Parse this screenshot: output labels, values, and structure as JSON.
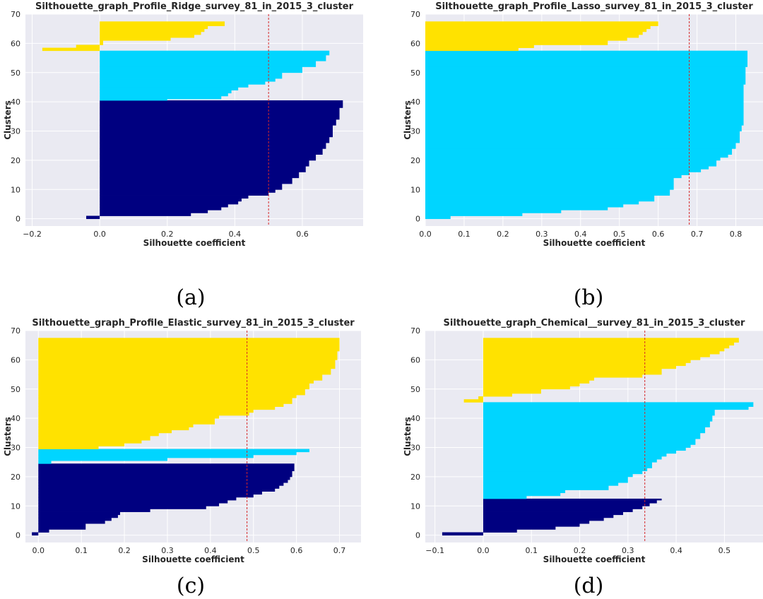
{
  "figure": {
    "captions": [
      "(a)",
      "(b)",
      "(c)",
      "(d)"
    ]
  },
  "colors": {
    "background": "#eaeaf2",
    "grid": "#ffffff",
    "cluster_0": "#000080",
    "cluster_1": "#00d5ff",
    "cluster_2": "#ffe200",
    "mean_line": "#d62728",
    "text": "#262626"
  },
  "chart_data": [
    {
      "type": "bar",
      "orientation": "horizontal",
      "title": "Silthouette_graph_Profile_Ridge_survey_81_in_2015_3_cluster",
      "xlabel": "Silhouette coefficient",
      "ylabel": "Clusters",
      "xlim": [
        -0.22,
        0.78
      ],
      "ylim": [
        -2.5,
        70
      ],
      "xticks": [
        -0.2,
        0.0,
        0.2,
        0.4,
        0.6
      ],
      "xtick_labels": [
        "−0.2",
        "0.0",
        "0.2",
        "0.4",
        "0.6"
      ],
      "yticks": [
        0,
        10,
        20,
        30,
        40,
        50,
        60,
        70
      ],
      "grid": true,
      "mean_silhouette": 0.5,
      "series": [
        {
          "cluster": 0,
          "y_start": 0,
          "y_end": 40.5,
          "profile": [
            [
              0,
              -0.04
            ],
            [
              1,
              0.27
            ],
            [
              2,
              0.32
            ],
            [
              3,
              0.36
            ],
            [
              4,
              0.38
            ],
            [
              5,
              0.41
            ],
            [
              6,
              0.42
            ],
            [
              7,
              0.44
            ],
            [
              8,
              0.5
            ],
            [
              9,
              0.52
            ],
            [
              10,
              0.54
            ],
            [
              12,
              0.57
            ],
            [
              14,
              0.59
            ],
            [
              16,
              0.61
            ],
            [
              18,
              0.62
            ],
            [
              20,
              0.64
            ],
            [
              22,
              0.66
            ],
            [
              24,
              0.67
            ],
            [
              26,
              0.68
            ],
            [
              28,
              0.69
            ],
            [
              30,
              0.69
            ],
            [
              32,
              0.7
            ],
            [
              34,
              0.71
            ],
            [
              36,
              0.71
            ],
            [
              38,
              0.72
            ],
            [
              40.5,
              0.72
            ]
          ]
        },
        {
          "cluster": 1,
          "y_start": 40.5,
          "y_end": 57.5,
          "profile": [
            [
              40.5,
              0.2
            ],
            [
              41,
              0.36
            ],
            [
              42,
              0.38
            ],
            [
              43,
              0.39
            ],
            [
              44,
              0.41
            ],
            [
              45,
              0.44
            ],
            [
              46,
              0.49
            ],
            [
              47,
              0.52
            ],
            [
              48,
              0.54
            ],
            [
              50,
              0.6
            ],
            [
              52,
              0.64
            ],
            [
              54,
              0.67
            ],
            [
              56,
              0.68
            ],
            [
              57.5,
              0.69
            ]
          ]
        },
        {
          "cluster": 2,
          "y_start": 57.5,
          "y_end": 67.5,
          "profile": [
            [
              57.5,
              -0.17
            ],
            [
              58.5,
              -0.07
            ],
            [
              59.5,
              0.01
            ],
            [
              61,
              0.21
            ],
            [
              62,
              0.28
            ],
            [
              63,
              0.3
            ],
            [
              64,
              0.31
            ],
            [
              65,
              0.32
            ],
            [
              66,
              0.37
            ],
            [
              67.5,
              0.4
            ]
          ]
        }
      ]
    },
    {
      "type": "bar",
      "orientation": "horizontal",
      "title": "Silthouette_graph_Profile_Lasso_survey_81_in_2015_3_cluster",
      "xlabel": "Silhouette coefficient",
      "ylabel": "Clusters",
      "xlim": [
        0.0,
        0.87
      ],
      "ylim": [
        -2.5,
        70
      ],
      "xticks": [
        0.0,
        0.1,
        0.2,
        0.3,
        0.4,
        0.5,
        0.6,
        0.7,
        0.8
      ],
      "xtick_labels": [
        "0.0",
        "0.1",
        "0.2",
        "0.3",
        "0.4",
        "0.5",
        "0.6",
        "0.7",
        "0.8"
      ],
      "yticks": [
        0,
        10,
        20,
        30,
        40,
        50,
        60,
        70
      ],
      "grid": true,
      "mean_silhouette": 0.68,
      "series": [
        {
          "cluster": 1,
          "y_start": 0,
          "y_end": 57.5,
          "profile": [
            [
              0,
              0.065
            ],
            [
              1,
              0.25
            ],
            [
              2,
              0.35
            ],
            [
              3,
              0.47
            ],
            [
              4,
              0.51
            ],
            [
              5,
              0.55
            ],
            [
              6,
              0.59
            ],
            [
              8,
              0.63
            ],
            [
              10,
              0.64
            ],
            [
              12,
              0.64
            ],
            [
              14,
              0.66
            ],
            [
              15,
              0.68
            ],
            [
              16,
              0.71
            ],
            [
              17,
              0.73
            ],
            [
              18,
              0.75
            ],
            [
              20,
              0.76
            ],
            [
              21,
              0.78
            ],
            [
              22,
              0.79
            ],
            [
              24,
              0.8
            ],
            [
              26,
              0.81
            ],
            [
              28,
              0.81
            ],
            [
              30,
              0.815
            ],
            [
              32,
              0.82
            ],
            [
              36,
              0.82
            ],
            [
              40,
              0.82
            ],
            [
              46,
              0.825
            ],
            [
              52,
              0.83
            ],
            [
              57.5,
              0.83
            ]
          ]
        },
        {
          "cluster": 2,
          "y_start": 57.5,
          "y_end": 67.5,
          "profile": [
            [
              57.5,
              0.24
            ],
            [
              58.5,
              0.28
            ],
            [
              59.5,
              0.47
            ],
            [
              61,
              0.52
            ],
            [
              62,
              0.55
            ],
            [
              63,
              0.56
            ],
            [
              64,
              0.57
            ],
            [
              65,
              0.58
            ],
            [
              66,
              0.6
            ],
            [
              67.5,
              0.61
            ]
          ]
        }
      ]
    },
    {
      "type": "bar",
      "orientation": "horizontal",
      "title": "Silthouette_graph_Profile_Elastic_survey_81_in_2015_3_cluster",
      "xlabel": "Silhouette coefficient",
      "ylabel": "Clusters",
      "xlim": [
        -0.03,
        0.75
      ],
      "ylim": [
        -2.5,
        70
      ],
      "xticks": [
        0.0,
        0.1,
        0.2,
        0.3,
        0.4,
        0.5,
        0.6,
        0.7
      ],
      "xtick_labels": [
        "0.0",
        "0.1",
        "0.2",
        "0.3",
        "0.4",
        "0.5",
        "0.6",
        "0.7"
      ],
      "yticks": [
        0,
        10,
        20,
        30,
        40,
        50,
        60,
        70
      ],
      "grid": true,
      "mean_silhouette": 0.485,
      "series": [
        {
          "cluster": 0,
          "y_start": 0,
          "y_end": 24.5,
          "profile": [
            [
              0,
              -0.015
            ],
            [
              1,
              0.025
            ],
            [
              2,
              0.11
            ],
            [
              4,
              0.155
            ],
            [
              5,
              0.17
            ],
            [
              6,
              0.185
            ],
            [
              7,
              0.19
            ],
            [
              8,
              0.26
            ],
            [
              9,
              0.39
            ],
            [
              10,
              0.42
            ],
            [
              11,
              0.44
            ],
            [
              12,
              0.46
            ],
            [
              13,
              0.5
            ],
            [
              14,
              0.52
            ],
            [
              15,
              0.55
            ],
            [
              16,
              0.56
            ],
            [
              17,
              0.57
            ],
            [
              18,
              0.58
            ],
            [
              19,
              0.585
            ],
            [
              20,
              0.59
            ],
            [
              22,
              0.595
            ],
            [
              24.5,
              0.6
            ]
          ]
        },
        {
          "cluster": 1,
          "y_start": 24.5,
          "y_end": 29.5,
          "profile": [
            [
              24.5,
              0.03
            ],
            [
              25.5,
              0.3
            ],
            [
              26.5,
              0.5
            ],
            [
              27.5,
              0.6
            ],
            [
              28.5,
              0.63
            ],
            [
              29.5,
              0.63
            ]
          ]
        },
        {
          "cluster": 2,
          "y_start": 29.5,
          "y_end": 67.5,
          "profile": [
            [
              29.5,
              0.14
            ],
            [
              30.5,
              0.2
            ],
            [
              31.5,
              0.24
            ],
            [
              32.5,
              0.26
            ],
            [
              34,
              0.28
            ],
            [
              35,
              0.31
            ],
            [
              36,
              0.35
            ],
            [
              37,
              0.36
            ],
            [
              38,
              0.41
            ],
            [
              40,
              0.42
            ],
            [
              41,
              0.49
            ],
            [
              42,
              0.5
            ],
            [
              43,
              0.55
            ],
            [
              44,
              0.57
            ],
            [
              45,
              0.59
            ],
            [
              47,
              0.6
            ],
            [
              48,
              0.62
            ],
            [
              50,
              0.63
            ],
            [
              52,
              0.64
            ],
            [
              53,
              0.66
            ],
            [
              55,
              0.68
            ],
            [
              57,
              0.69
            ],
            [
              60,
              0.695
            ],
            [
              63,
              0.7
            ],
            [
              67.5,
              0.71
            ]
          ]
        }
      ]
    },
    {
      "type": "bar",
      "orientation": "horizontal",
      "title": "Silthouette_graph_Chemical__survey_81_in_2015_3_cluster",
      "xlabel": "Silhouette coefficient",
      "ylabel": "Clusters",
      "xlim": [
        -0.12,
        0.58
      ],
      "ylim": [
        -2.5,
        70
      ],
      "xticks": [
        -0.1,
        0.0,
        0.1,
        0.2,
        0.3,
        0.4,
        0.5
      ],
      "xtick_labels": [
        "−0.1",
        "0.0",
        "0.1",
        "0.2",
        "0.3",
        "0.4",
        "0.5"
      ],
      "yticks": [
        0,
        10,
        20,
        30,
        40,
        50,
        60,
        70
      ],
      "grid": true,
      "mean_silhouette": 0.335,
      "series": [
        {
          "cluster": 0,
          "y_start": 0,
          "y_end": 12.5,
          "profile": [
            [
              0,
              -0.085
            ],
            [
              1,
              0.07
            ],
            [
              2,
              0.15
            ],
            [
              3,
              0.2
            ],
            [
              4,
              0.22
            ],
            [
              5,
              0.25
            ],
            [
              6,
              0.27
            ],
            [
              7,
              0.29
            ],
            [
              8,
              0.31
            ],
            [
              9,
              0.33
            ],
            [
              10,
              0.345
            ],
            [
              11,
              0.36
            ],
            [
              12,
              0.37
            ],
            [
              12.5,
              0.37
            ]
          ]
        },
        {
          "cluster": 1,
          "y_start": 12.5,
          "y_end": 45.5,
          "profile": [
            [
              12.5,
              0.09
            ],
            [
              13.5,
              0.16
            ],
            [
              14.5,
              0.17
            ],
            [
              15.5,
              0.26
            ],
            [
              17,
              0.28
            ],
            [
              18,
              0.3
            ],
            [
              20,
              0.31
            ],
            [
              21,
              0.33
            ],
            [
              22,
              0.34
            ],
            [
              23,
              0.35
            ],
            [
              25,
              0.36
            ],
            [
              26,
              0.37
            ],
            [
              27,
              0.38
            ],
            [
              28,
              0.4
            ],
            [
              29,
              0.42
            ],
            [
              30,
              0.43
            ],
            [
              31,
              0.44
            ],
            [
              33,
              0.45
            ],
            [
              35,
              0.46
            ],
            [
              37,
              0.47
            ],
            [
              39,
              0.475
            ],
            [
              41,
              0.48
            ],
            [
              43,
              0.55
            ],
            [
              44,
              0.56
            ],
            [
              45.5,
              0.565
            ]
          ]
        },
        {
          "cluster": 2,
          "y_start": 45.5,
          "y_end": 67.5,
          "profile": [
            [
              45.5,
              -0.04
            ],
            [
              46.5,
              -0.01
            ],
            [
              47.5,
              0.06
            ],
            [
              48.5,
              0.12
            ],
            [
              50,
              0.18
            ],
            [
              51,
              0.2
            ],
            [
              52,
              0.22
            ],
            [
              53,
              0.23
            ],
            [
              54,
              0.33
            ],
            [
              55,
              0.37
            ],
            [
              57,
              0.4
            ],
            [
              58,
              0.42
            ],
            [
              59,
              0.43
            ],
            [
              60,
              0.45
            ],
            [
              61,
              0.47
            ],
            [
              62,
              0.49
            ],
            [
              63,
              0.5
            ],
            [
              64,
              0.51
            ],
            [
              65,
              0.52
            ],
            [
              66,
              0.53
            ],
            [
              67.5,
              0.535
            ]
          ]
        }
      ]
    }
  ]
}
